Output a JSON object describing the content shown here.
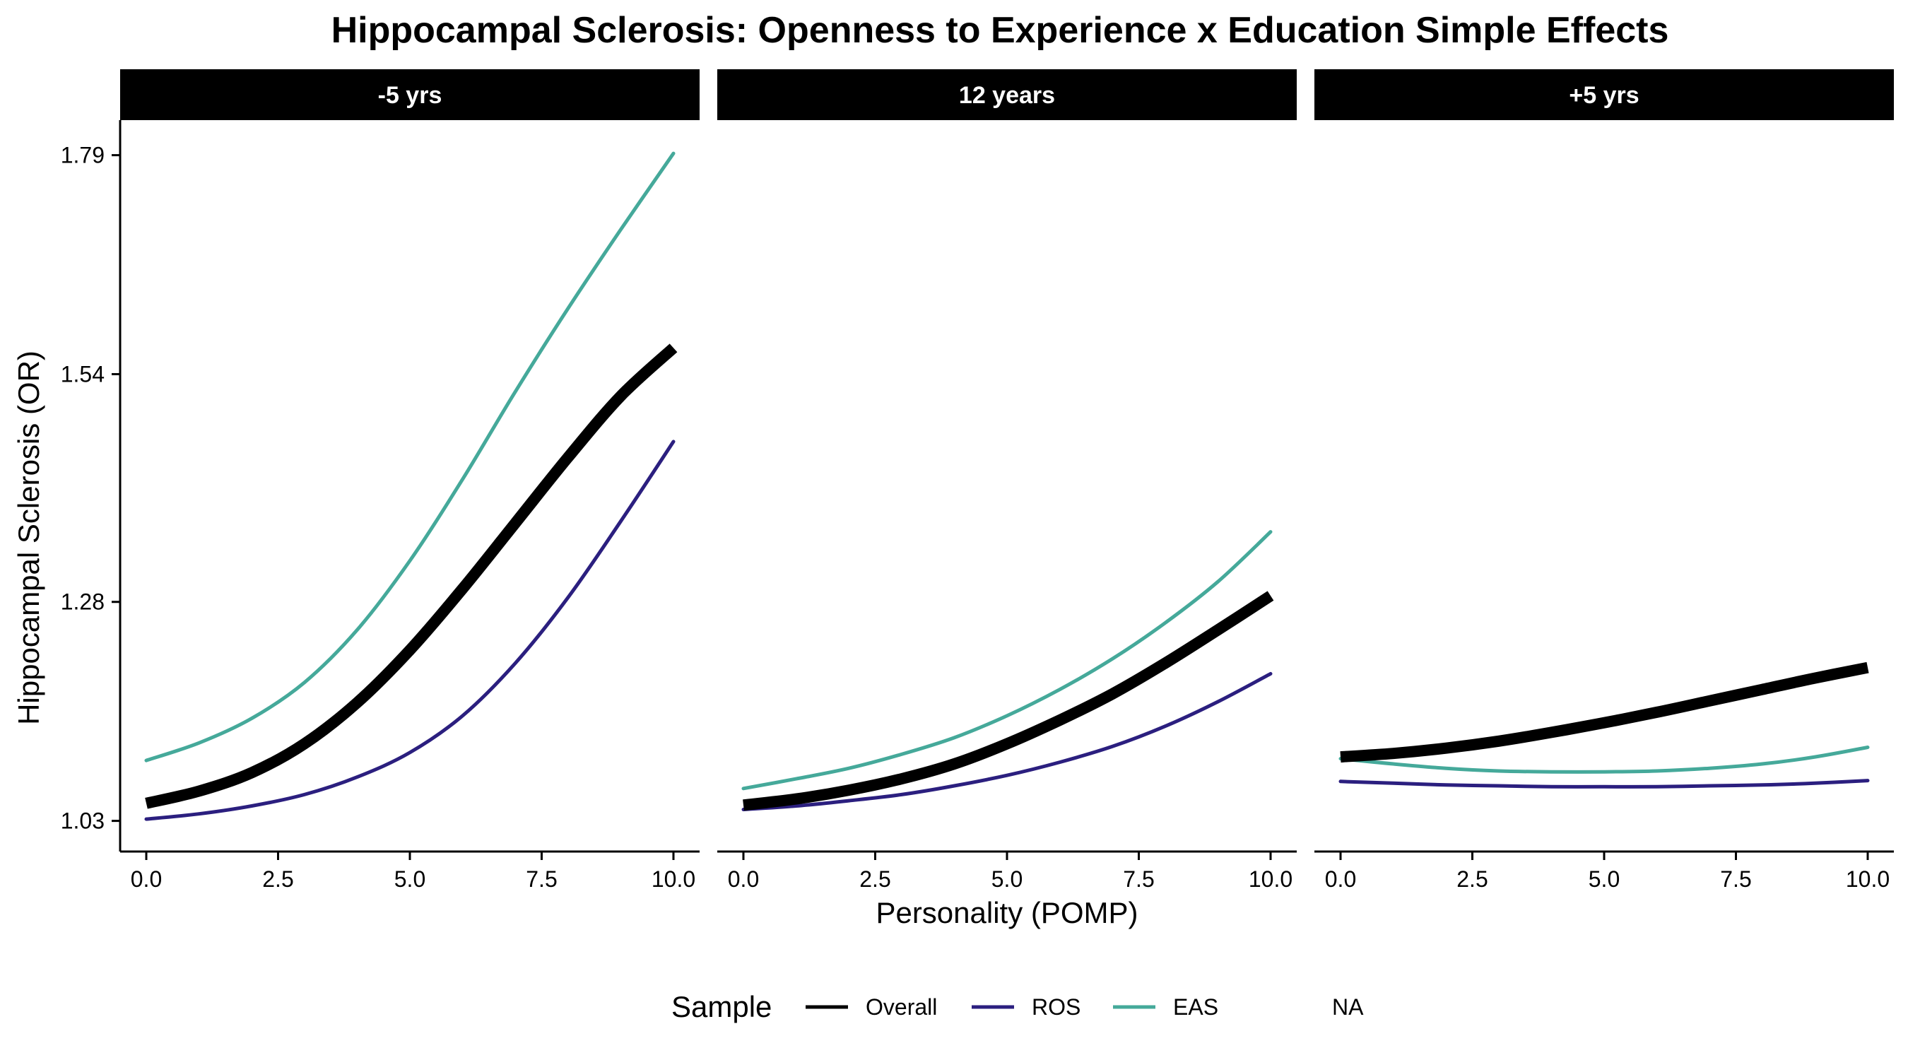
{
  "chart_data": {
    "type": "line",
    "title": "Hippocampal Sclerosis: Openness to Experience x Education Simple Effects",
    "xlabel": "Personality (POMP)",
    "ylabel": "Hippocampal Sclerosis (OR)",
    "xlim": [
      0,
      10
    ],
    "ylim": [
      0.995,
      1.83
    ],
    "x_ticks": [
      "0.0",
      "2.5",
      "5.0",
      "7.5",
      "10.0"
    ],
    "x_tick_values": [
      0,
      2.5,
      5,
      7.5,
      10
    ],
    "y_ticks": [
      "1.03",
      "1.28",
      "1.54",
      "1.79"
    ],
    "y_tick_values": [
      1.03,
      1.28,
      1.54,
      1.79
    ],
    "grid": false,
    "x": [
      0,
      1,
      2,
      3,
      4,
      5,
      6,
      7,
      8,
      9,
      10
    ],
    "legend": {
      "title": "Sample",
      "position": "bottom",
      "entries": [
        {
          "label": "Overall",
          "color": "#000000"
        },
        {
          "label": "ROS",
          "color": "#2b1f7f"
        },
        {
          "label": "EAS",
          "color": "#45a99a"
        },
        {
          "label": "NA",
          "color": "none"
        }
      ]
    },
    "panels": [
      {
        "label": "-5 yrs",
        "series": [
          {
            "name": "Overall",
            "color": "#000000",
            "values": [
              1.05,
              1.064,
              1.085,
              1.118,
              1.165,
              1.225,
              1.295,
              1.37,
              1.445,
              1.515,
              1.57
            ]
          },
          {
            "name": "ROS",
            "color": "#2b1f7f",
            "values": [
              1.032,
              1.038,
              1.047,
              1.06,
              1.08,
              1.108,
              1.15,
              1.21,
              1.285,
              1.372,
              1.463
            ]
          },
          {
            "name": "EAS",
            "color": "#45a99a",
            "values": [
              1.099,
              1.119,
              1.147,
              1.188,
              1.248,
              1.327,
              1.42,
              1.52,
              1.615,
              1.705,
              1.792
            ]
          }
        ]
      },
      {
        "label": "12 years",
        "series": [
          {
            "name": "Overall",
            "color": "#000000",
            "values": [
              1.048,
              1.055,
              1.065,
              1.078,
              1.095,
              1.118,
              1.145,
              1.175,
              1.21,
              1.248,
              1.287
            ]
          },
          {
            "name": "ROS",
            "color": "#2b1f7f",
            "values": [
              1.043,
              1.047,
              1.053,
              1.06,
              1.07,
              1.082,
              1.097,
              1.115,
              1.138,
              1.166,
              1.198
            ]
          },
          {
            "name": "EAS",
            "color": "#45a99a",
            "values": [
              1.067,
              1.078,
              1.09,
              1.106,
              1.125,
              1.15,
              1.18,
              1.215,
              1.256,
              1.303,
              1.36
            ]
          }
        ]
      },
      {
        "label": "+5 yrs",
        "series": [
          {
            "name": "Overall",
            "color": "#000000",
            "values": [
              1.103,
              1.107,
              1.113,
              1.121,
              1.131,
              1.142,
              1.154,
              1.167,
              1.18,
              1.193,
              1.205
            ]
          },
          {
            "name": "ROS",
            "color": "#2b1f7f",
            "values": [
              1.075,
              1.073,
              1.071,
              1.07,
              1.069,
              1.069,
              1.069,
              1.07,
              1.071,
              1.073,
              1.076
            ]
          },
          {
            "name": "EAS",
            "color": "#45a99a",
            "values": [
              1.101,
              1.095,
              1.09,
              1.087,
              1.086,
              1.086,
              1.087,
              1.09,
              1.095,
              1.103,
              1.114
            ]
          }
        ]
      }
    ]
  }
}
